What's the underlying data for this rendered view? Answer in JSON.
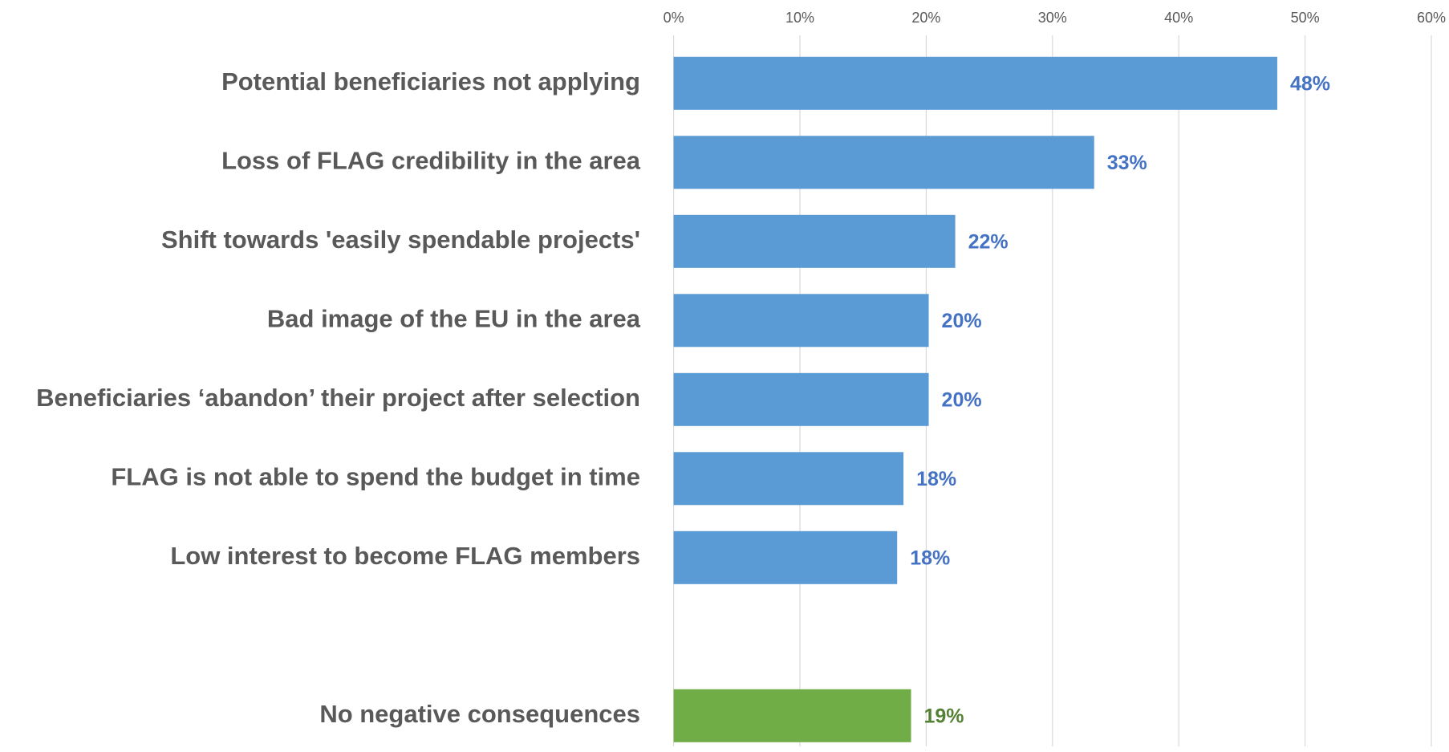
{
  "chart_data": {
    "type": "hbar",
    "categories": [
      "Potential beneficiaries not applying",
      "Loss of FLAG credibility in the area",
      "Shift towards 'easily spendable projects'",
      "Bad image of the EU in the area",
      "Beneficiaries ‘abandon’ their project after selection",
      "FLAG is not able to spend the budget in time",
      "Low interest to become FLAG members",
      null,
      "No negative consequences"
    ],
    "values": [
      47.8,
      33.3,
      22.3,
      20.2,
      20.2,
      18.2,
      17.7,
      null,
      18.8
    ],
    "value_labels": [
      "48%",
      "33%",
      "22%",
      "20%",
      "20%",
      "18%",
      "18%",
      null,
      "19%"
    ],
    "colors": [
      "#5b9bd5",
      "#5b9bd5",
      "#5b9bd5",
      "#5b9bd5",
      "#5b9bd5",
      "#5b9bd5",
      "#5b9bd5",
      null,
      "#70ad47"
    ],
    "label_colors": [
      "#4472c4",
      "#4472c4",
      "#4472c4",
      "#4472c4",
      "#4472c4",
      "#4472c4",
      "#4472c4",
      null,
      "#548235"
    ],
    "xlim": [
      0,
      60
    ],
    "xticks": [
      {
        "value": 0,
        "label": "0%"
      },
      {
        "value": 10,
        "label": "10%"
      },
      {
        "value": 20,
        "label": "20%"
      },
      {
        "value": 30,
        "label": "30%"
      },
      {
        "value": 40,
        "label": "40%"
      },
      {
        "value": 50,
        "label": "50%"
      },
      {
        "value": 60,
        "label": "60%"
      }
    ],
    "grid": true
  }
}
